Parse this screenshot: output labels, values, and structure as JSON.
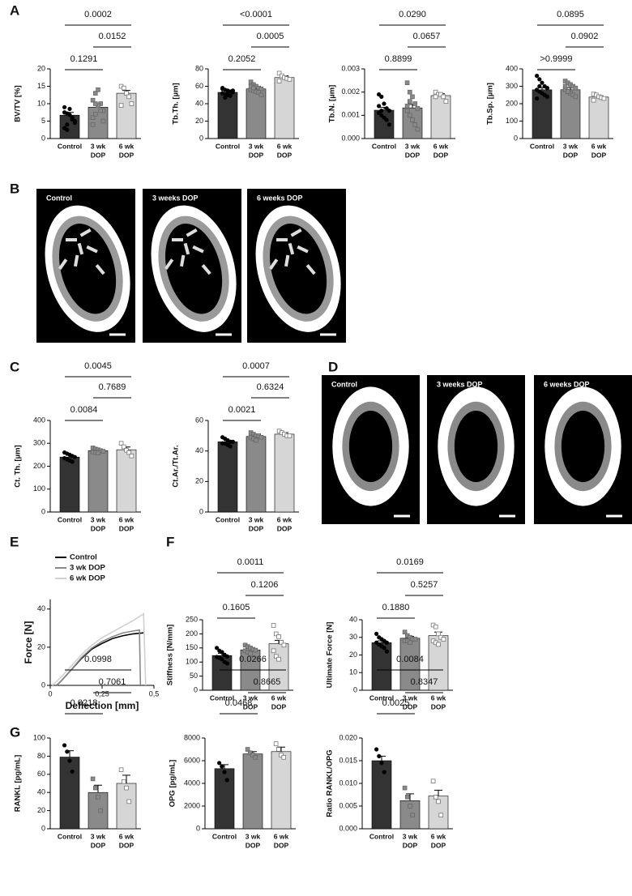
{
  "panel_letters": [
    "A",
    "B",
    "C",
    "D",
    "E",
    "F",
    "G"
  ],
  "image_panels": {
    "B": [
      "Control",
      "3 weeks DOP",
      "6 weeks DOP"
    ],
    "D": [
      "Control",
      "3 weeks DOP",
      "6 weeks DOP"
    ]
  },
  "chart_data": [
    {
      "type": "bar",
      "ylabel": "BV/TV [%]",
      "categories": [
        [
          "Control"
        ],
        [
          "3 wk",
          "DOP"
        ],
        [
          "6 wk",
          "DOP"
        ]
      ],
      "colors": [
        "#333333",
        "#8a8a8a",
        "#d6d6d6"
      ],
      "values": [
        6.7,
        9.0,
        13.0
      ],
      "errors": [
        0.8,
        1.0,
        0.8
      ],
      "points": [
        [
          7.5,
          7.2,
          6.8,
          5.5,
          4.5,
          3,
          2.5,
          8.5,
          6,
          5,
          9,
          4
        ],
        [
          11,
          13,
          14,
          10,
          8,
          6,
          7,
          9.5,
          8,
          5,
          4,
          10
        ],
        [
          15,
          14.5,
          13,
          12,
          10,
          9.5
        ]
      ],
      "ylim": [
        0,
        20
      ],
      "yticks": [
        0,
        5,
        10,
        15,
        20
      ],
      "comparisons": [
        {
          "from": 0,
          "to": 1,
          "label": "0.1291"
        },
        {
          "from": 1,
          "to": 2,
          "label": "0.0152"
        },
        {
          "from": 0,
          "to": 2,
          "label": "0.0002"
        }
      ]
    },
    {
      "type": "bar",
      "ylabel": "Tb.Th. [µm]",
      "categories": [
        [
          "Control"
        ],
        [
          "3 wk",
          "DOP"
        ],
        [
          "6 wk",
          "DOP"
        ]
      ],
      "colors": [
        "#333333",
        "#8a8a8a",
        "#d6d6d6"
      ],
      "values": [
        53,
        57,
        70
      ],
      "errors": [
        1.5,
        2,
        2
      ],
      "points": [
        [
          58,
          56,
          55,
          54,
          53,
          52,
          51,
          50,
          49,
          55,
          57,
          47
        ],
        [
          65,
          62,
          60,
          58,
          57,
          56,
          55,
          54,
          53,
          50,
          60,
          58
        ],
        [
          75,
          72,
          70,
          69,
          68,
          66
        ]
      ],
      "ylim": [
        0,
        80
      ],
      "yticks": [
        0,
        20,
        40,
        60,
        80
      ],
      "comparisons": [
        {
          "from": 0,
          "to": 1,
          "label": "0.2052"
        },
        {
          "from": 1,
          "to": 2,
          "label": "0.0005"
        },
        {
          "from": 0,
          "to": 2,
          "label": "<0.0001"
        }
      ]
    },
    {
      "type": "bar",
      "ylabel": "Tb.N. [µm]",
      "categories": [
        [
          "Control"
        ],
        [
          "3 wk",
          "DOP"
        ],
        [
          "6 wk",
          "DOP"
        ]
      ],
      "colors": [
        "#333333",
        "#8a8a8a",
        "#d6d6d6"
      ],
      "values": [
        0.00122,
        0.00132,
        0.00185
      ],
      "errors": [
        0.00012,
        0.00015,
        8e-05
      ],
      "points": [
        [
          0.0019,
          0.0018,
          0.0015,
          0.0013,
          0.0012,
          0.0011,
          0.001,
          0.0009,
          0.0008,
          0.0006,
          0.0014,
          0.0012
        ],
        [
          0.0024,
          0.002,
          0.0018,
          0.0015,
          0.0013,
          0.0012,
          0.001,
          0.0008,
          0.0006,
          0.0004,
          0.0014,
          0.0016
        ],
        [
          0.002,
          0.0019,
          0.0019,
          0.0018,
          0.0016,
          0.0018
        ]
      ],
      "ylim": [
        0,
        0.003
      ],
      "yticks": [
        {
          "value": 0,
          "label": "0.000"
        },
        {
          "value": 0.001,
          "label": "0.001"
        },
        {
          "value": 0.002,
          "label": "0.002"
        },
        {
          "value": 0.003,
          "label": "0.003"
        }
      ],
      "comparisons": [
        {
          "from": 0,
          "to": 1,
          "label": "0.8899"
        },
        {
          "from": 1,
          "to": 2,
          "label": "0.0657"
        },
        {
          "from": 0,
          "to": 2,
          "label": "0.0290"
        }
      ]
    },
    {
      "type": "bar",
      "ylabel": "Tb.Sp. [µm]",
      "categories": [
        [
          "Control"
        ],
        [
          "3 wk",
          "DOP"
        ],
        [
          "6 wk",
          "DOP"
        ]
      ],
      "colors": [
        "#333333",
        "#8a8a8a",
        "#d6d6d6"
      ],
      "values": [
        280,
        280,
        238
      ],
      "errors": [
        12,
        12,
        8
      ],
      "points": [
        [
          360,
          340,
          320,
          300,
          290,
          280,
          270,
          260,
          250,
          240,
          230,
          300
        ],
        [
          330,
          320,
          310,
          300,
          290,
          280,
          270,
          260,
          250,
          240,
          300,
          270
        ],
        [
          255,
          250,
          240,
          235,
          230,
          220
        ]
      ],
      "ylim": [
        0,
        400
      ],
      "yticks": [
        0,
        100,
        200,
        300,
        400
      ],
      "comparisons": [
        {
          "from": 0,
          "to": 1,
          "label": ">0.9999"
        },
        {
          "from": 1,
          "to": 2,
          "label": "0.0902"
        },
        {
          "from": 0,
          "to": 2,
          "label": "0.0895"
        }
      ]
    },
    {
      "type": "bar",
      "ylabel": "Ct. Th. [µm]",
      "categories": [
        [
          "Control"
        ],
        [
          "3 wk",
          "DOP"
        ],
        [
          "6 wk",
          "DOP"
        ]
      ],
      "colors": [
        "#333333",
        "#8a8a8a",
        "#d6d6d6"
      ],
      "values": [
        240,
        268,
        272
      ],
      "errors": [
        8,
        5,
        12
      ],
      "points": [
        [
          260,
          255,
          250,
          245,
          240,
          235,
          230,
          225,
          220
        ],
        [
          280,
          275,
          272,
          268,
          265,
          262,
          260,
          258
        ],
        [
          300,
          285,
          270,
          260,
          245
        ]
      ],
      "ylim": [
        0,
        400
      ],
      "yticks": [
        0,
        100,
        200,
        300,
        400
      ],
      "comparisons": [
        {
          "from": 0,
          "to": 1,
          "label": "0.0084"
        },
        {
          "from": 1,
          "to": 2,
          "label": "0.7689"
        },
        {
          "from": 0,
          "to": 2,
          "label": "0.0045"
        }
      ]
    },
    {
      "type": "bar",
      "ylabel": "Ct.Ar./Tt.Ar.",
      "categories": [
        [
          "Control"
        ],
        [
          "3 wk",
          "DOP"
        ],
        [
          "6 wk",
          "DOP"
        ]
      ],
      "colors": [
        "#333333",
        "#8a8a8a",
        "#d6d6d6"
      ],
      "values": [
        46,
        49.5,
        51
      ],
      "errors": [
        1,
        1,
        1
      ],
      "points": [
        [
          49,
          48,
          47,
          46,
          46,
          45,
          45,
          44,
          43
        ],
        [
          52,
          51,
          50,
          50,
          49,
          49,
          48,
          47
        ],
        [
          53,
          52,
          51,
          50,
          50
        ]
      ],
      "ylim": [
        0,
        60
      ],
      "yticks": [
        0,
        20,
        40,
        60
      ],
      "comparisons": [
        {
          "from": 0,
          "to": 1,
          "label": "0.0021"
        },
        {
          "from": 1,
          "to": 2,
          "label": "0.6324"
        },
        {
          "from": 0,
          "to": 2,
          "label": "0.0007"
        }
      ]
    },
    {
      "type": "line",
      "xlabel": "Deflection [mm]",
      "ylabel": "Force [N]",
      "xlim": [
        0,
        0.5
      ],
      "xticks": [
        0,
        {
          "value": 0.25,
          "label": "0,25"
        },
        {
          "value": 0.5,
          "label": "0,5"
        }
      ],
      "ylim": [
        0,
        45
      ],
      "yticks": [
        0,
        20,
        40
      ],
      "series": [
        {
          "name": "Control",
          "color": "#000000",
          "x": [
            0.03,
            0.05,
            0.1,
            0.15,
            0.2,
            0.25,
            0.3,
            0.35,
            0.4,
            0.45
          ],
          "values": [
            0,
            2,
            8,
            14,
            19,
            22,
            24.5,
            26,
            27,
            27.5
          ]
        },
        {
          "name": "3 wk DOP",
          "color": "#888888",
          "x": [
            0.03,
            0.05,
            0.1,
            0.15,
            0.2,
            0.25,
            0.3,
            0.35,
            0.4,
            0.43,
            0.435
          ],
          "values": [
            0,
            2,
            8,
            14.5,
            19.5,
            23,
            25.5,
            27.5,
            28.5,
            29,
            0
          ]
        },
        {
          "name": "6 wk DOP",
          "color": "#d0d0d0",
          "x": [
            0.01,
            0.05,
            0.1,
            0.15,
            0.2,
            0.25,
            0.3,
            0.35,
            0.4,
            0.45,
            0.46
          ],
          "values": [
            0,
            4,
            10,
            16,
            21,
            25,
            28,
            31,
            34,
            37.5,
            0
          ]
        }
      ]
    },
    {
      "type": "bar",
      "ylabel": "Stiffness [N/mm]",
      "categories": [
        [
          "Control"
        ],
        [
          "3 wk",
          "DOP"
        ],
        [
          "6 wk",
          "DOP"
        ]
      ],
      "colors": [
        "#333333",
        "#8a8a8a",
        "#d6d6d6"
      ],
      "values": [
        123,
        143,
        165
      ],
      "errors": [
        8,
        5,
        12
      ],
      "points": [
        [
          150,
          140,
          135,
          125,
          120,
          118,
          115,
          110,
          100,
          95
        ],
        [
          160,
          155,
          150,
          145,
          142,
          140,
          135,
          130
        ],
        [
          230,
          200,
          190,
          170,
          160,
          140,
          120,
          110
        ]
      ],
      "ylim": [
        0,
        250
      ],
      "yticks": [
        0,
        50,
        100,
        150,
        200,
        250
      ],
      "comparisons": [
        {
          "from": 0,
          "to": 1,
          "label": "0.1605"
        },
        {
          "from": 1,
          "to": 2,
          "label": "0.1206"
        },
        {
          "from": 0,
          "to": 2,
          "label": "0.0011"
        }
      ]
    },
    {
      "type": "bar",
      "ylabel": "Ultimate Force [N]",
      "categories": [
        [
          "Control"
        ],
        [
          "3 wk",
          "DOP"
        ],
        [
          "6 wk",
          "DOP"
        ]
      ],
      "colors": [
        "#333333",
        "#8a8a8a",
        "#d6d6d6"
      ],
      "values": [
        27,
        29.5,
        31
      ],
      "errors": [
        1,
        1,
        2
      ],
      "points": [
        [
          32,
          30,
          29,
          28,
          27,
          27,
          26,
          25,
          24,
          22
        ],
        [
          33,
          31,
          30,
          29,
          29,
          28,
          28,
          27
        ],
        [
          37,
          36,
          32,
          30,
          29,
          28,
          27,
          26
        ]
      ],
      "ylim": [
        0,
        40
      ],
      "yticks": [
        0,
        10,
        20,
        30,
        40
      ],
      "comparisons": [
        {
          "from": 0,
          "to": 1,
          "label": "0.1880"
        },
        {
          "from": 1,
          "to": 2,
          "label": "0.5257"
        },
        {
          "from": 0,
          "to": 2,
          "label": "0.0169"
        }
      ]
    },
    {
      "type": "bar",
      "ylabel": "RANKL [pg/mL]",
      "categories": [
        [
          "Control"
        ],
        [
          "3 wk",
          "DOP"
        ],
        [
          "6 wk",
          "DOP"
        ]
      ],
      "colors": [
        "#333333",
        "#8a8a8a",
        "#d6d6d6"
      ],
      "values": [
        79,
        40,
        50
      ],
      "errors": [
        7,
        8,
        9
      ],
      "points": [
        [
          92,
          85,
          75,
          63
        ],
        [
          55,
          45,
          35,
          20
        ],
        [
          65,
          52,
          45,
          30
        ]
      ],
      "ylim": [
        0,
        100
      ],
      "yticks": [
        0,
        20,
        40,
        60,
        80,
        100
      ],
      "comparisons": [
        {
          "from": 0,
          "to": 1,
          "label": "0.0218"
        },
        {
          "from": 1,
          "to": 2,
          "label": "0.7061"
        },
        {
          "from": 0,
          "to": 2,
          "label": "0.0998"
        }
      ]
    },
    {
      "type": "bar",
      "ylabel": "OPG [pg/mL]",
      "categories": [
        [
          "Control"
        ],
        [
          "3 wk",
          "DOP"
        ],
        [
          "6 wk",
          "DOP"
        ]
      ],
      "colors": [
        "#333333",
        "#8a8a8a",
        "#d6d6d6"
      ],
      "values": [
        5300,
        6600,
        6800
      ],
      "errors": [
        350,
        200,
        400
      ],
      "points": [
        [
          5800,
          5500,
          5000,
          4300
        ],
        [
          7000,
          6700,
          6500,
          6300
        ],
        [
          7500,
          7000,
          6500,
          6300
        ]
      ],
      "ylim": [
        0,
        8000
      ],
      "yticks": [
        0,
        2000,
        4000,
        6000,
        8000
      ],
      "comparisons": [
        {
          "from": 0,
          "to": 1,
          "label": "0.0468"
        },
        {
          "from": 1,
          "to": 2,
          "label": "0.8665"
        },
        {
          "from": 0,
          "to": 2,
          "label": "0.0266"
        }
      ]
    },
    {
      "type": "bar",
      "ylabel": "Ratio RANKL/OPG",
      "categories": [
        [
          "Control"
        ],
        [
          "3 wk",
          "DOP"
        ],
        [
          "6 wk",
          "DOP"
        ]
      ],
      "colors": [
        "#333333",
        "#8a8a8a",
        "#d6d6d6"
      ],
      "values": [
        0.015,
        0.0062,
        0.0072
      ],
      "errors": [
        0.001,
        0.0015,
        0.0013
      ],
      "points": [
        [
          0.0175,
          0.016,
          0.0145,
          0.0125
        ],
        [
          0.009,
          0.007,
          0.005,
          0.003
        ],
        [
          0.0105,
          0.007,
          0.006,
          0.003
        ]
      ],
      "ylim": [
        0,
        0.02
      ],
      "yticks": [
        {
          "value": 0,
          "label": "0.000"
        },
        {
          "value": 0.005,
          "label": "0.005"
        },
        {
          "value": 0.01,
          "label": "0.010"
        },
        {
          "value": 0.015,
          "label": "0.015"
        },
        {
          "value": 0.02,
          "label": "0.020"
        }
      ],
      "comparisons": [
        {
          "from": 0,
          "to": 1,
          "label": "0.0025"
        },
        {
          "from": 1,
          "to": 2,
          "label": "0.8347"
        },
        {
          "from": 0,
          "to": 2,
          "label": "0.0084"
        }
      ]
    }
  ]
}
